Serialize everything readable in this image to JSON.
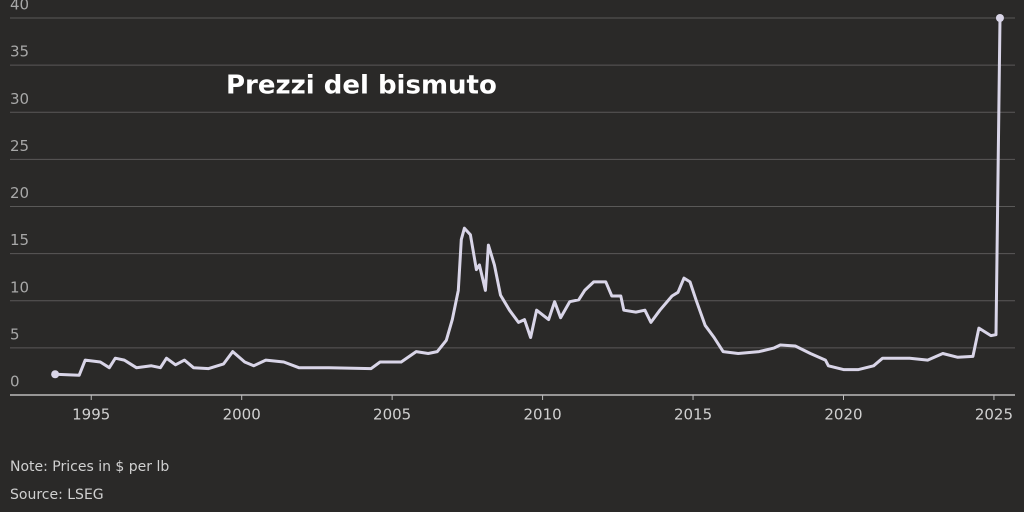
{
  "chart_data": {
    "type": "line",
    "title": "Prezzi del bismuto",
    "note": "Note: Prices in $ per lb",
    "source": "Source: LSEG",
    "color": "#d9d5e8",
    "grid": true,
    "xlim": [
      1992.3,
      2025.7
    ],
    "xticks": [
      1995,
      2000,
      2005,
      2010,
      2015,
      2020,
      2025
    ],
    "ylim": [
      0,
      40
    ],
    "yticks": [
      0,
      5,
      10,
      15,
      20,
      25,
      30,
      35,
      40
    ],
    "x": [
      1993.8,
      1994.6,
      1994.8,
      1995.3,
      1995.6,
      1995.8,
      1996.1,
      1996.5,
      1997.0,
      1997.3,
      1997.5,
      1997.8,
      1998.1,
      1998.4,
      1998.9,
      1999.4,
      1999.7,
      2000.1,
      2000.4,
      2000.8,
      2001.4,
      2001.9,
      2002.9,
      2004.3,
      2004.6,
      2005.3,
      2005.8,
      2006.2,
      2006.5,
      2006.8,
      2007.0,
      2007.2,
      2007.3,
      2007.4,
      2007.6,
      2007.8,
      2007.9,
      2008.1,
      2008.2,
      2008.4,
      2008.6,
      2008.9,
      2009.2,
      2009.4,
      2009.6,
      2009.8,
      2010.2,
      2010.4,
      2010.6,
      2010.9,
      2011.2,
      2011.4,
      2011.7,
      2012.1,
      2012.3,
      2012.6,
      2012.7,
      2013.1,
      2013.4,
      2013.6,
      2013.9,
      2014.3,
      2014.5,
      2014.7,
      2014.9,
      2015.1,
      2015.4,
      2015.7,
      2016.0,
      2016.5,
      2017.2,
      2017.7,
      2017.9,
      2018.4,
      2018.9,
      2019.4,
      2019.5,
      2020.0,
      2020.5,
      2021.0,
      2021.3,
      2022.2,
      2022.8,
      2023.3,
      2023.8,
      2024.3,
      2024.5,
      2024.9,
      2025.07,
      2025.2
    ],
    "values": [
      2.2,
      2.1,
      3.7,
      3.5,
      2.9,
      3.9,
      3.7,
      2.9,
      3.1,
      2.9,
      3.9,
      3.2,
      3.7,
      2.9,
      2.8,
      3.3,
      4.6,
      3.5,
      3.1,
      3.7,
      3.5,
      2.9,
      2.9,
      2.8,
      3.5,
      3.5,
      4.6,
      4.4,
      4.6,
      5.8,
      8.0,
      11.1,
      16.5,
      17.7,
      17.0,
      13.3,
      13.8,
      11.1,
      15.9,
      13.8,
      10.6,
      9.0,
      7.7,
      8.0,
      6.1,
      9.0,
      8.0,
      9.9,
      8.2,
      9.9,
      10.1,
      11.1,
      12.0,
      12.0,
      10.5,
      10.5,
      9.0,
      8.8,
      9.0,
      7.7,
      9.0,
      10.5,
      10.9,
      12.4,
      12.0,
      10.1,
      7.4,
      6.1,
      4.6,
      4.4,
      4.6,
      5.0,
      5.3,
      5.2,
      4.4,
      3.7,
      3.1,
      2.7,
      2.7,
      3.1,
      3.9,
      3.9,
      3.7,
      4.4,
      4.0,
      4.1,
      7.1,
      6.3,
      6.4,
      40.0
    ]
  }
}
